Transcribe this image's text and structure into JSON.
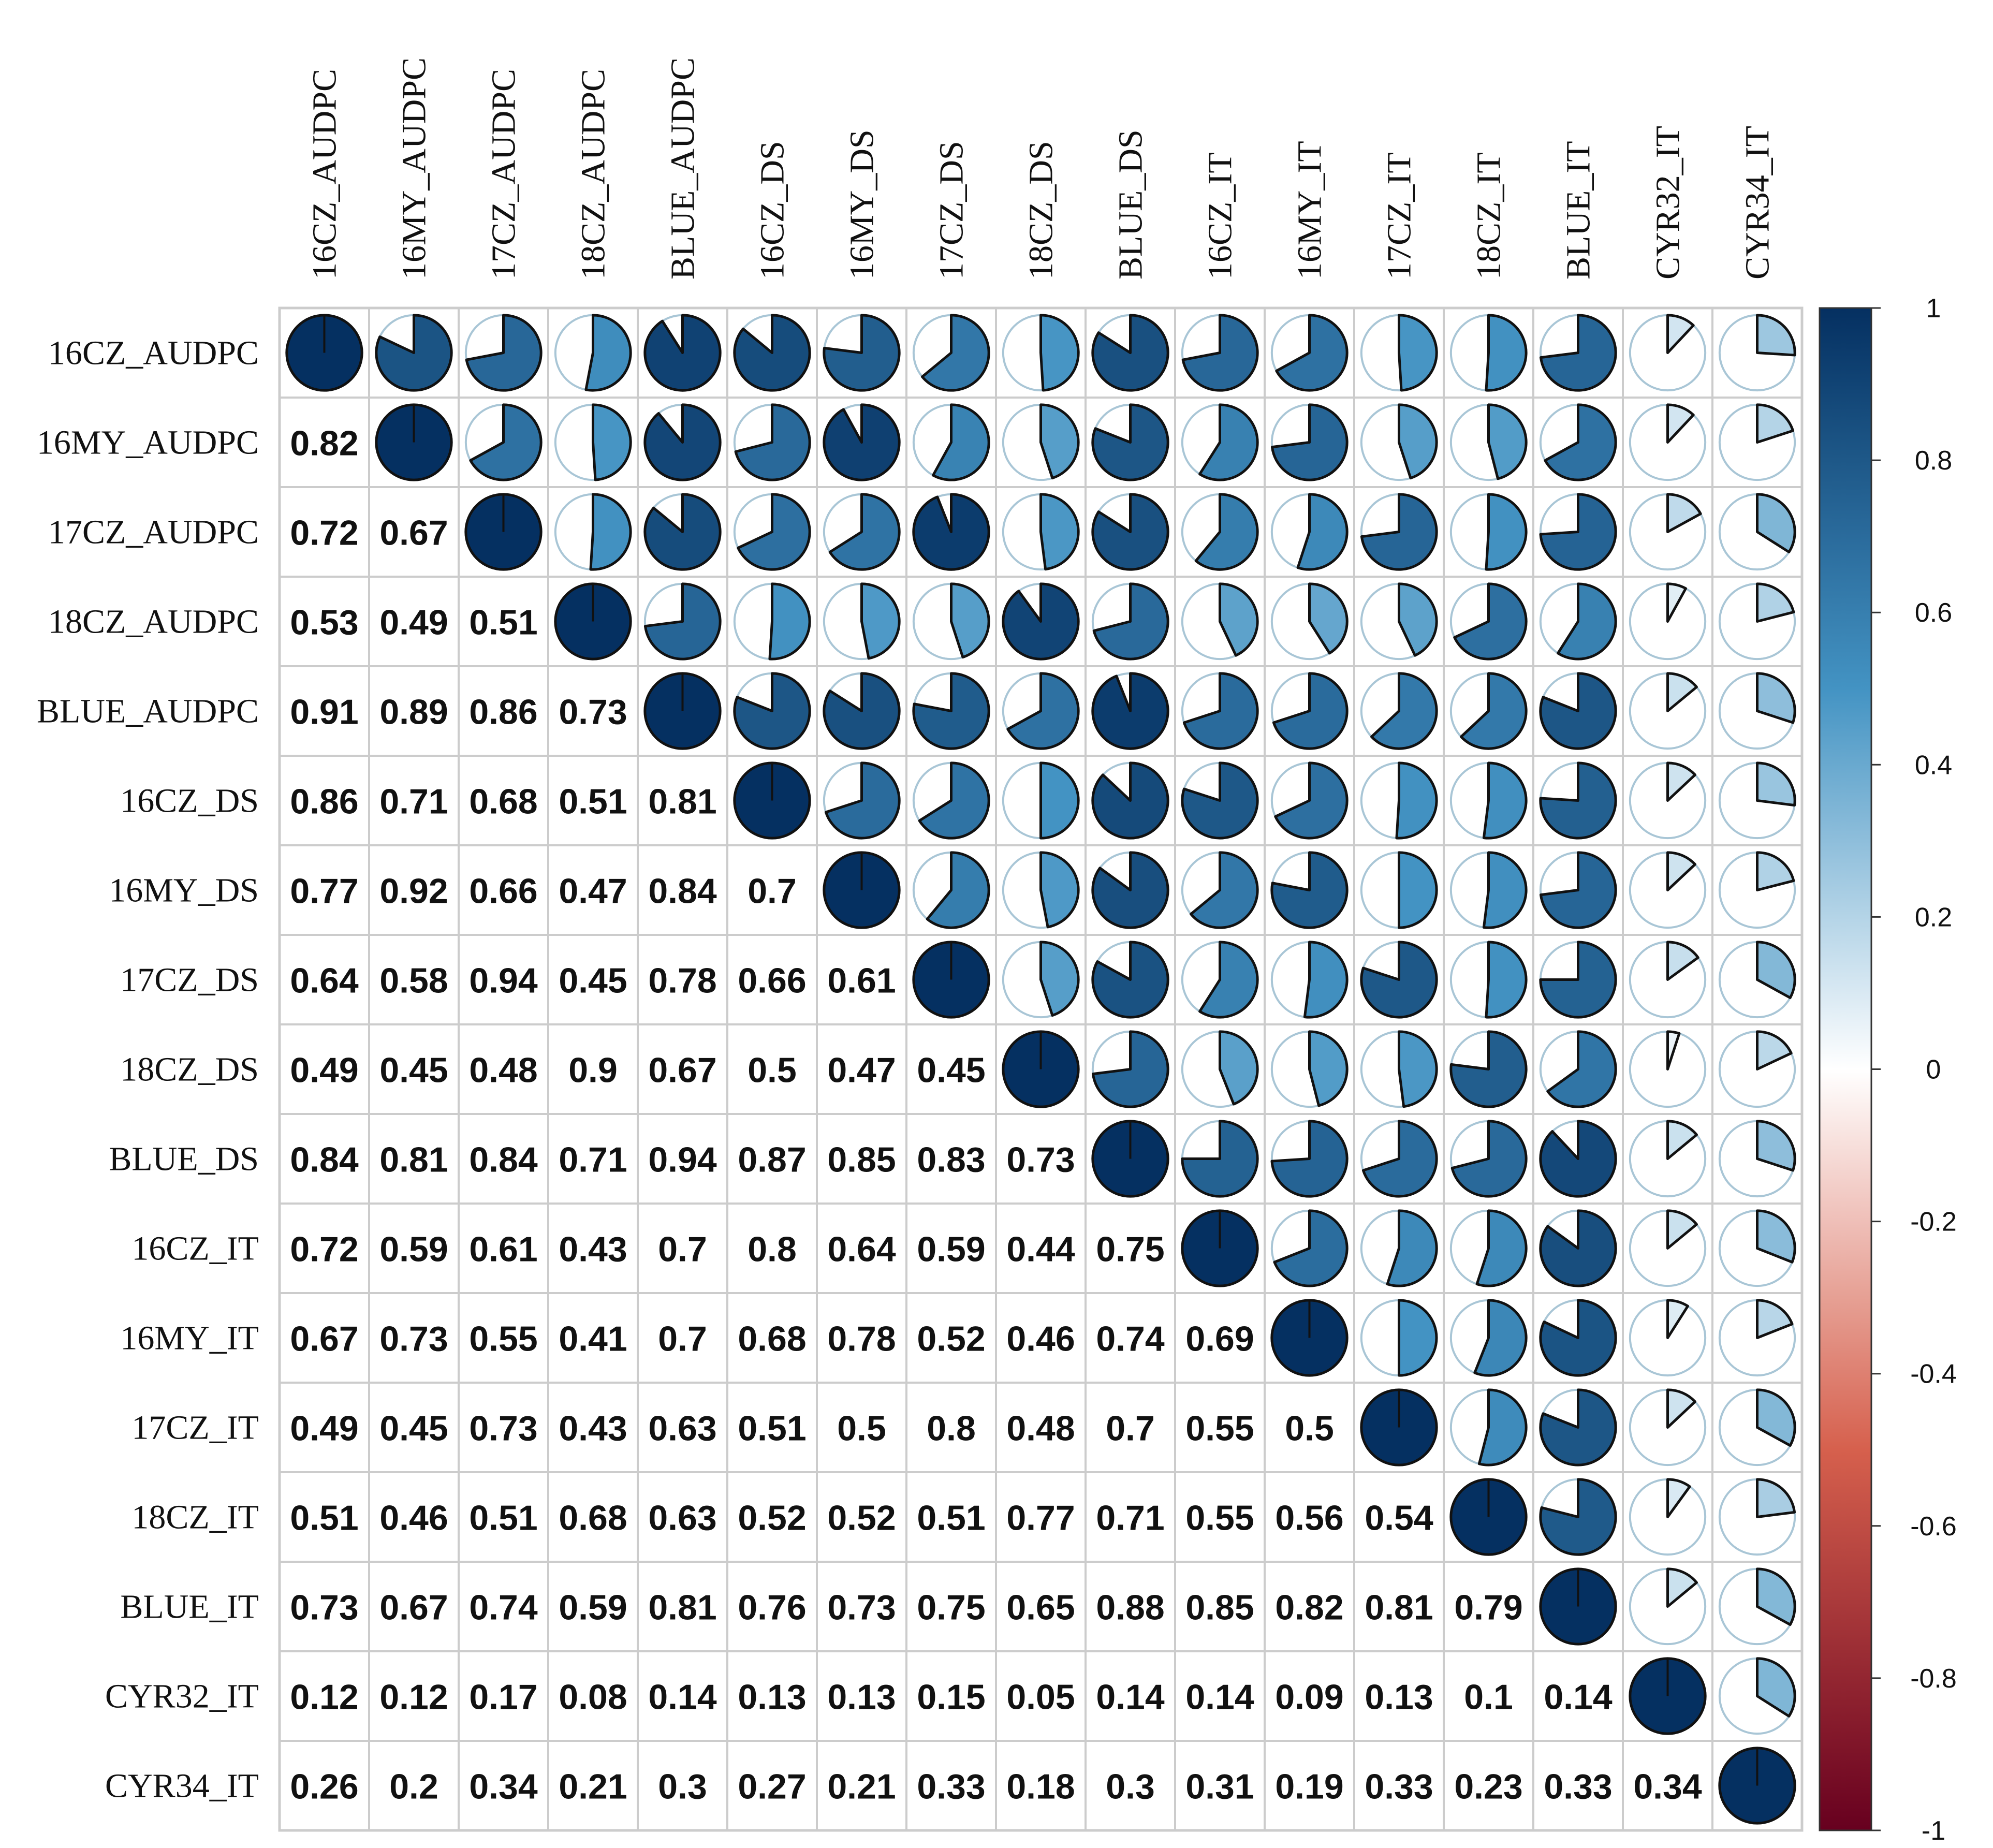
{
  "chart_data": {
    "type": "heatmap",
    "title": "",
    "variables": [
      "16CZ_AUDPC",
      "16MY_AUDPC",
      "17CZ_AUDPC",
      "18CZ_AUDPC",
      "BLUE_AUDPC",
      "16CZ_DS",
      "16MY_DS",
      "17CZ_DS",
      "18CZ_DS",
      "BLUE_DS",
      "16CZ_IT",
      "16MY_IT",
      "17CZ_IT",
      "18CZ_IT",
      "BLUE_IT",
      "CYR32_IT",
      "CYR34_IT"
    ],
    "matrix": [
      [
        1,
        0.82,
        0.72,
        0.53,
        0.91,
        0.86,
        0.77,
        0.64,
        0.49,
        0.84,
        0.72,
        0.67,
        0.49,
        0.51,
        0.73,
        0.12,
        0.26
      ],
      [
        0.82,
        1,
        0.67,
        0.49,
        0.89,
        0.71,
        0.92,
        0.58,
        0.45,
        0.81,
        0.59,
        0.73,
        0.45,
        0.46,
        0.67,
        0.12,
        0.2
      ],
      [
        0.72,
        0.67,
        1,
        0.51,
        0.86,
        0.68,
        0.66,
        0.94,
        0.48,
        0.84,
        0.61,
        0.55,
        0.73,
        0.51,
        0.74,
        0.17,
        0.34
      ],
      [
        0.53,
        0.49,
        0.51,
        1,
        0.73,
        0.51,
        0.47,
        0.45,
        0.9,
        0.71,
        0.43,
        0.41,
        0.43,
        0.68,
        0.59,
        0.08,
        0.21
      ],
      [
        0.91,
        0.89,
        0.86,
        0.73,
        1,
        0.81,
        0.84,
        0.78,
        0.67,
        0.94,
        0.7,
        0.7,
        0.63,
        0.63,
        0.81,
        0.14,
        0.3
      ],
      [
        0.86,
        0.71,
        0.68,
        0.51,
        0.81,
        1,
        0.7,
        0.66,
        0.5,
        0.87,
        0.8,
        0.68,
        0.51,
        0.52,
        0.76,
        0.13,
        0.27
      ],
      [
        0.77,
        0.92,
        0.66,
        0.47,
        0.84,
        0.7,
        1,
        0.61,
        0.47,
        0.85,
        0.64,
        0.78,
        0.5,
        0.52,
        0.73,
        0.13,
        0.21
      ],
      [
        0.64,
        0.58,
        0.94,
        0.45,
        0.78,
        0.66,
        0.61,
        1,
        0.45,
        0.83,
        0.59,
        0.52,
        0.8,
        0.51,
        0.75,
        0.15,
        0.33
      ],
      [
        0.49,
        0.45,
        0.48,
        0.9,
        0.67,
        0.5,
        0.47,
        0.45,
        1,
        0.73,
        0.44,
        0.46,
        0.48,
        0.77,
        0.65,
        0.05,
        0.18
      ],
      [
        0.84,
        0.81,
        0.84,
        0.71,
        0.94,
        0.87,
        0.85,
        0.83,
        0.73,
        1,
        0.75,
        0.74,
        0.7,
        0.71,
        0.88,
        0.14,
        0.3
      ],
      [
        0.72,
        0.59,
        0.61,
        0.43,
        0.7,
        0.8,
        0.64,
        0.59,
        0.44,
        0.75,
        1,
        0.69,
        0.55,
        0.55,
        0.85,
        0.14,
        0.31
      ],
      [
        0.67,
        0.73,
        0.55,
        0.41,
        0.7,
        0.68,
        0.78,
        0.52,
        0.46,
        0.74,
        0.69,
        1,
        0.5,
        0.56,
        0.82,
        0.09,
        0.19
      ],
      [
        0.49,
        0.45,
        0.73,
        0.43,
        0.63,
        0.51,
        0.5,
        0.8,
        0.48,
        0.7,
        0.55,
        0.5,
        1,
        0.54,
        0.81,
        0.13,
        0.33
      ],
      [
        0.51,
        0.46,
        0.51,
        0.68,
        0.63,
        0.52,
        0.52,
        0.51,
        0.77,
        0.71,
        0.55,
        0.56,
        0.54,
        1,
        0.79,
        0.1,
        0.23
      ],
      [
        0.73,
        0.67,
        0.74,
        0.59,
        0.81,
        0.76,
        0.73,
        0.75,
        0.65,
        0.88,
        0.85,
        0.82,
        0.81,
        0.79,
        1,
        0.14,
        0.33
      ],
      [
        0.12,
        0.12,
        0.17,
        0.08,
        0.14,
        0.13,
        0.13,
        0.15,
        0.05,
        0.14,
        0.14,
        0.09,
        0.13,
        0.1,
        0.14,
        1,
        0.34
      ],
      [
        0.26,
        0.2,
        0.34,
        0.21,
        0.3,
        0.27,
        0.21,
        0.33,
        0.18,
        0.3,
        0.31,
        0.19,
        0.33,
        0.23,
        0.33,
        0.34,
        1
      ]
    ],
    "lower_display": "number",
    "upper_display": "pie",
    "diagonal_display": "pie",
    "color_range": [
      -1,
      1
    ],
    "legend_ticks": [
      1,
      0.8,
      0.6,
      0.4,
      0.2,
      0,
      -0.2,
      -0.4,
      -0.6,
      -0.8,
      -1
    ],
    "legend_tick_labels": [
      "1",
      "0.8",
      "0.6",
      "0.4",
      "0.2",
      "0",
      "-0.2",
      "-0.4",
      "-0.6",
      "-0.8",
      "-1"
    ],
    "legend_position": "right",
    "colors": {
      "strong_negative": "#67001F",
      "negative": "#D6604D",
      "neutral": "#FFFFFF",
      "positive": "#4393C3",
      "strong_positive": "#053061",
      "grid": "#CCCCCC",
      "pie_outline": "#111111",
      "circle_outline": "#A9C6D6"
    }
  }
}
